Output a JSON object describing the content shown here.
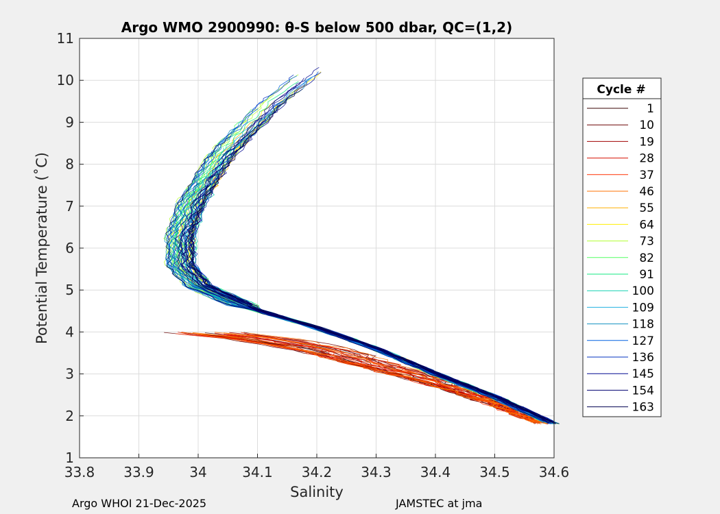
{
  "chart_data": {
    "type": "line",
    "title": "Argo WMO 2900990: θ-S below 500 dbar,  QC=(1,2)",
    "xlabel": "Salinity",
    "ylabel": "Potential Temperature (˚C)",
    "xlim": [
      33.8,
      34.6
    ],
    "ylim": [
      1,
      11
    ],
    "xticks": [
      "33.8",
      "33.9",
      "34",
      "34.1",
      "34.2",
      "34.3",
      "34.4",
      "34.5",
      "34.6"
    ],
    "yticks": [
      "1",
      "2",
      "3",
      "4",
      "5",
      "6",
      "7",
      "8",
      "9",
      "10",
      "11"
    ],
    "grid": true,
    "legend": {
      "title": "Cycle #",
      "placement": "right-outside",
      "entries": [
        "1",
        "10",
        "19",
        "28",
        "37",
        "46",
        "55",
        "64",
        "73",
        "82",
        "91",
        "100",
        "109",
        "118",
        "127",
        "136",
        "145",
        "154",
        "163"
      ],
      "colors": [
        "#3a0000",
        "#6a0000",
        "#a00000",
        "#d41000",
        "#ff3000",
        "#ff7000",
        "#ffb000",
        "#ffee00",
        "#b0ff30",
        "#50ff60",
        "#10e880",
        "#10d0b0",
        "#20b0e0",
        "#1090c0",
        "#0060e0",
        "#0030c0",
        "#000890",
        "#000070",
        "#000050"
      ]
    },
    "series_profile": {
      "description_values": "theta-S profiles below 500 dbar",
      "upper_branch": [
        [
          34.23,
          10.65
        ],
        [
          34.12,
          9.4
        ],
        [
          34.04,
          8.2
        ],
        [
          33.99,
          7.1
        ],
        [
          33.97,
          6.3
        ],
        [
          33.97,
          5.6
        ],
        [
          34.0,
          5.1
        ],
        [
          34.08,
          4.6
        ],
        [
          34.2,
          4.1
        ],
        [
          34.3,
          3.6
        ],
        [
          34.4,
          3.0
        ],
        [
          34.5,
          2.45
        ],
        [
          34.6,
          1.8
        ]
      ],
      "early_low_branch": [
        [
          33.9,
          3.75
        ],
        [
          34.0,
          4.0
        ],
        [
          34.1,
          3.85
        ],
        [
          34.2,
          3.6
        ],
        [
          34.3,
          3.2
        ],
        [
          34.4,
          2.8
        ],
        [
          34.5,
          2.3
        ],
        [
          34.58,
          1.8
        ]
      ]
    }
  },
  "footer": {
    "left": "Argo WHOI 21-Dec-2025",
    "right": "JAMSTEC at jma"
  }
}
